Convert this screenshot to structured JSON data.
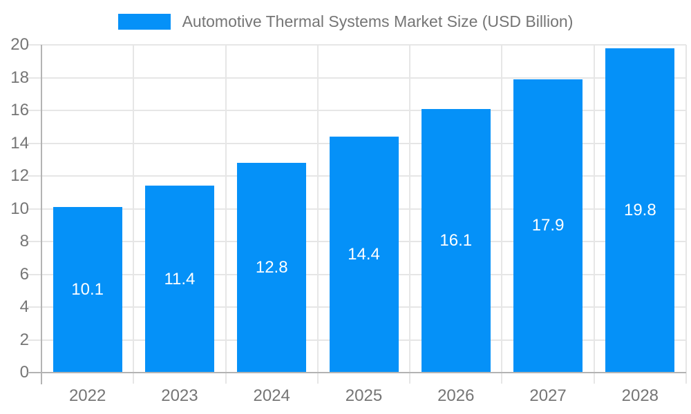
{
  "chart_data": {
    "type": "bar",
    "title": "Automotive Thermal Systems Market Size (USD Billion)",
    "categories": [
      "2022",
      "2023",
      "2024",
      "2025",
      "2026",
      "2027",
      "2028"
    ],
    "series": [
      {
        "name": "Automotive Thermal Systems Market Size (USD Billion)",
        "values": [
          10.1,
          11.4,
          12.8,
          14.4,
          16.1,
          17.9,
          19.8
        ],
        "color": "#0591f8"
      }
    ],
    "value_labels": [
      "10.1",
      "11.4",
      "12.8",
      "14.4",
      "16.1",
      "17.9",
      "19.8"
    ],
    "value_label_position": "inside-center",
    "xlabel": "",
    "ylabel": "",
    "ylim": [
      0,
      20
    ],
    "yticks": [
      0,
      2,
      4,
      6,
      8,
      10,
      12,
      14,
      16,
      18,
      20
    ],
    "grid": true,
    "legend_position": "top",
    "legend_marker": "rect"
  },
  "colors": {
    "bar": "#0591f8",
    "grid": "#e6e6e6",
    "axis": "#b3b3b3",
    "tick_text": "#757575",
    "title_text": "#757575",
    "value_text": "#ffffff",
    "background": "#ffffff"
  }
}
